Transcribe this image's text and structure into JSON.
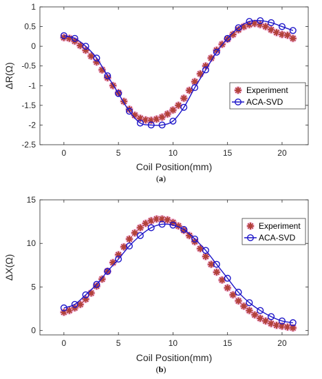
{
  "colors": {
    "experiment": "#b2413a",
    "experiment_glow": "#f0a9d8",
    "model": "#1c14c8",
    "axis": "#262626"
  },
  "chart_data": [
    {
      "type": "line",
      "caption_prefix": "(",
      "caption_letter": "a",
      "caption_suffix": ")",
      "xlabel": "Coil Position(mm)",
      "ylabel": "ΔR(Ω)",
      "xlim": [
        -2.2,
        22.4
      ],
      "ylim": [
        -2.5,
        1
      ],
      "xticks": [
        0,
        5,
        10,
        15,
        20
      ],
      "yticks": [
        -2.5,
        -2,
        -1.5,
        -1,
        -0.5,
        0,
        0.5,
        1
      ],
      "ytick_labels": [
        "-2.5",
        "-2",
        "-1.5",
        "-1",
        "-0.5",
        "0",
        "0.5",
        "1"
      ],
      "grid": false,
      "legend_position": "right",
      "series": [
        {
          "name": "Experiment",
          "marker": "star",
          "x": [
            0,
            0.5,
            1,
            1.5,
            2,
            2.5,
            3,
            3.5,
            4,
            4.5,
            5,
            5.5,
            6,
            6.5,
            7,
            7.5,
            8,
            8.5,
            9,
            9.5,
            10,
            10.5,
            11,
            11.5,
            12,
            12.5,
            13,
            13.5,
            14,
            14.5,
            15,
            15.5,
            16,
            16.5,
            17,
            17.5,
            18,
            18.5,
            19,
            19.5,
            20,
            20.5,
            21
          ],
          "y": [
            0.22,
            0.2,
            0.13,
            0.02,
            -0.1,
            -0.25,
            -0.4,
            -0.6,
            -0.8,
            -1.0,
            -1.18,
            -1.4,
            -1.6,
            -1.75,
            -1.83,
            -1.87,
            -1.88,
            -1.85,
            -1.8,
            -1.72,
            -1.62,
            -1.5,
            -1.32,
            -1.12,
            -0.9,
            -0.7,
            -0.5,
            -0.3,
            -0.1,
            0.05,
            0.18,
            0.3,
            0.42,
            0.5,
            0.55,
            0.58,
            0.55,
            0.5,
            0.42,
            0.35,
            0.3,
            0.28,
            0.2
          ]
        },
        {
          "name": "ACA-SVD",
          "marker": "circle",
          "x": [
            0,
            1,
            2,
            3,
            4,
            5,
            6,
            7,
            8,
            9,
            10,
            11,
            12,
            13,
            14,
            15,
            16,
            17,
            18,
            19,
            20,
            21
          ],
          "y": [
            0.27,
            0.2,
            0.0,
            -0.3,
            -0.75,
            -1.2,
            -1.65,
            -1.95,
            -2.0,
            -2.0,
            -1.9,
            -1.55,
            -1.05,
            -0.6,
            -0.15,
            0.2,
            0.47,
            0.63,
            0.65,
            0.6,
            0.5,
            0.4
          ]
        }
      ]
    },
    {
      "type": "line",
      "caption_prefix": "(",
      "caption_letter": "b",
      "caption_suffix": ")",
      "xlabel": "Coil Position(mm)",
      "ylabel": "ΔX(Ω)",
      "xlim": [
        -2.2,
        22.4
      ],
      "ylim": [
        -0.5,
        15
      ],
      "xticks": [
        0,
        5,
        10,
        15,
        20
      ],
      "yticks": [
        0,
        5,
        10,
        15
      ],
      "ytick_labels": [
        "0",
        "5",
        "10",
        "15"
      ],
      "grid": false,
      "legend_position": "top-right",
      "series": [
        {
          "name": "Experiment",
          "marker": "star",
          "x": [
            0,
            0.5,
            1,
            1.5,
            2,
            2.5,
            3,
            3.5,
            4,
            4.5,
            5,
            5.5,
            6,
            6.5,
            7,
            7.5,
            8,
            8.5,
            9,
            9.5,
            10,
            10.5,
            11,
            11.5,
            12,
            12.5,
            13,
            13.5,
            14,
            14.5,
            15,
            15.5,
            16,
            16.5,
            17,
            17.5,
            18,
            18.5,
            19,
            19.5,
            20,
            20.5,
            21
          ],
          "y": [
            2.1,
            2.3,
            2.6,
            3.0,
            3.6,
            4.3,
            5.1,
            5.9,
            6.8,
            7.8,
            8.7,
            9.6,
            10.5,
            11.2,
            11.8,
            12.3,
            12.6,
            12.8,
            12.8,
            12.7,
            12.4,
            12.0,
            11.5,
            10.9,
            10.2,
            9.4,
            8.5,
            7.6,
            6.7,
            5.8,
            4.9,
            4.1,
            3.4,
            2.8,
            2.3,
            1.8,
            1.4,
            1.1,
            0.8,
            0.6,
            0.5,
            0.4,
            0.3
          ]
        },
        {
          "name": "ACA-SVD",
          "marker": "circle",
          "x": [
            0,
            1,
            2,
            3,
            4,
            5,
            6,
            7,
            8,
            9,
            10,
            11,
            12,
            13,
            14,
            15,
            16,
            17,
            18,
            19,
            20,
            21
          ],
          "y": [
            2.6,
            3.0,
            4.1,
            5.3,
            6.8,
            8.2,
            9.7,
            10.9,
            11.8,
            12.2,
            12.1,
            11.6,
            10.5,
            9.2,
            7.6,
            6.0,
            4.4,
            3.2,
            2.3,
            1.6,
            1.1,
            0.9
          ]
        }
      ]
    }
  ]
}
